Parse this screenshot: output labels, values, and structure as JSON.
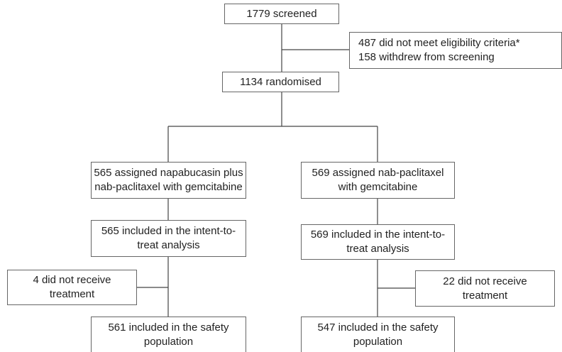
{
  "nodes": [
    {
      "lines": [
        "1779 screened"
      ]
    },
    {
      "lines": [
        "487 did not meet eligibility criteria*",
        "158 withdrew from screening"
      ]
    },
    {
      "lines": [
        "1134 randomised"
      ]
    },
    {
      "lines": [
        "565 assigned napabucasin plus",
        "nab-paclitaxel with gemcitabine"
      ]
    },
    {
      "lines": [
        "569 assigned nab-paclitaxel",
        "with gemcitabine"
      ]
    },
    {
      "lines": [
        "565 included in the intent-to-",
        "treat analysis"
      ]
    },
    {
      "lines": [
        "569 included in the intent-to-",
        "treat analysis"
      ]
    },
    {
      "lines": [
        "4 did not receive",
        "treatment"
      ]
    },
    {
      "lines": [
        "22 did not receive",
        "treatment"
      ]
    },
    {
      "lines": [
        "561 included in the safety",
        "population"
      ]
    },
    {
      "lines": [
        "547 included in the safety",
        "population"
      ]
    }
  ]
}
